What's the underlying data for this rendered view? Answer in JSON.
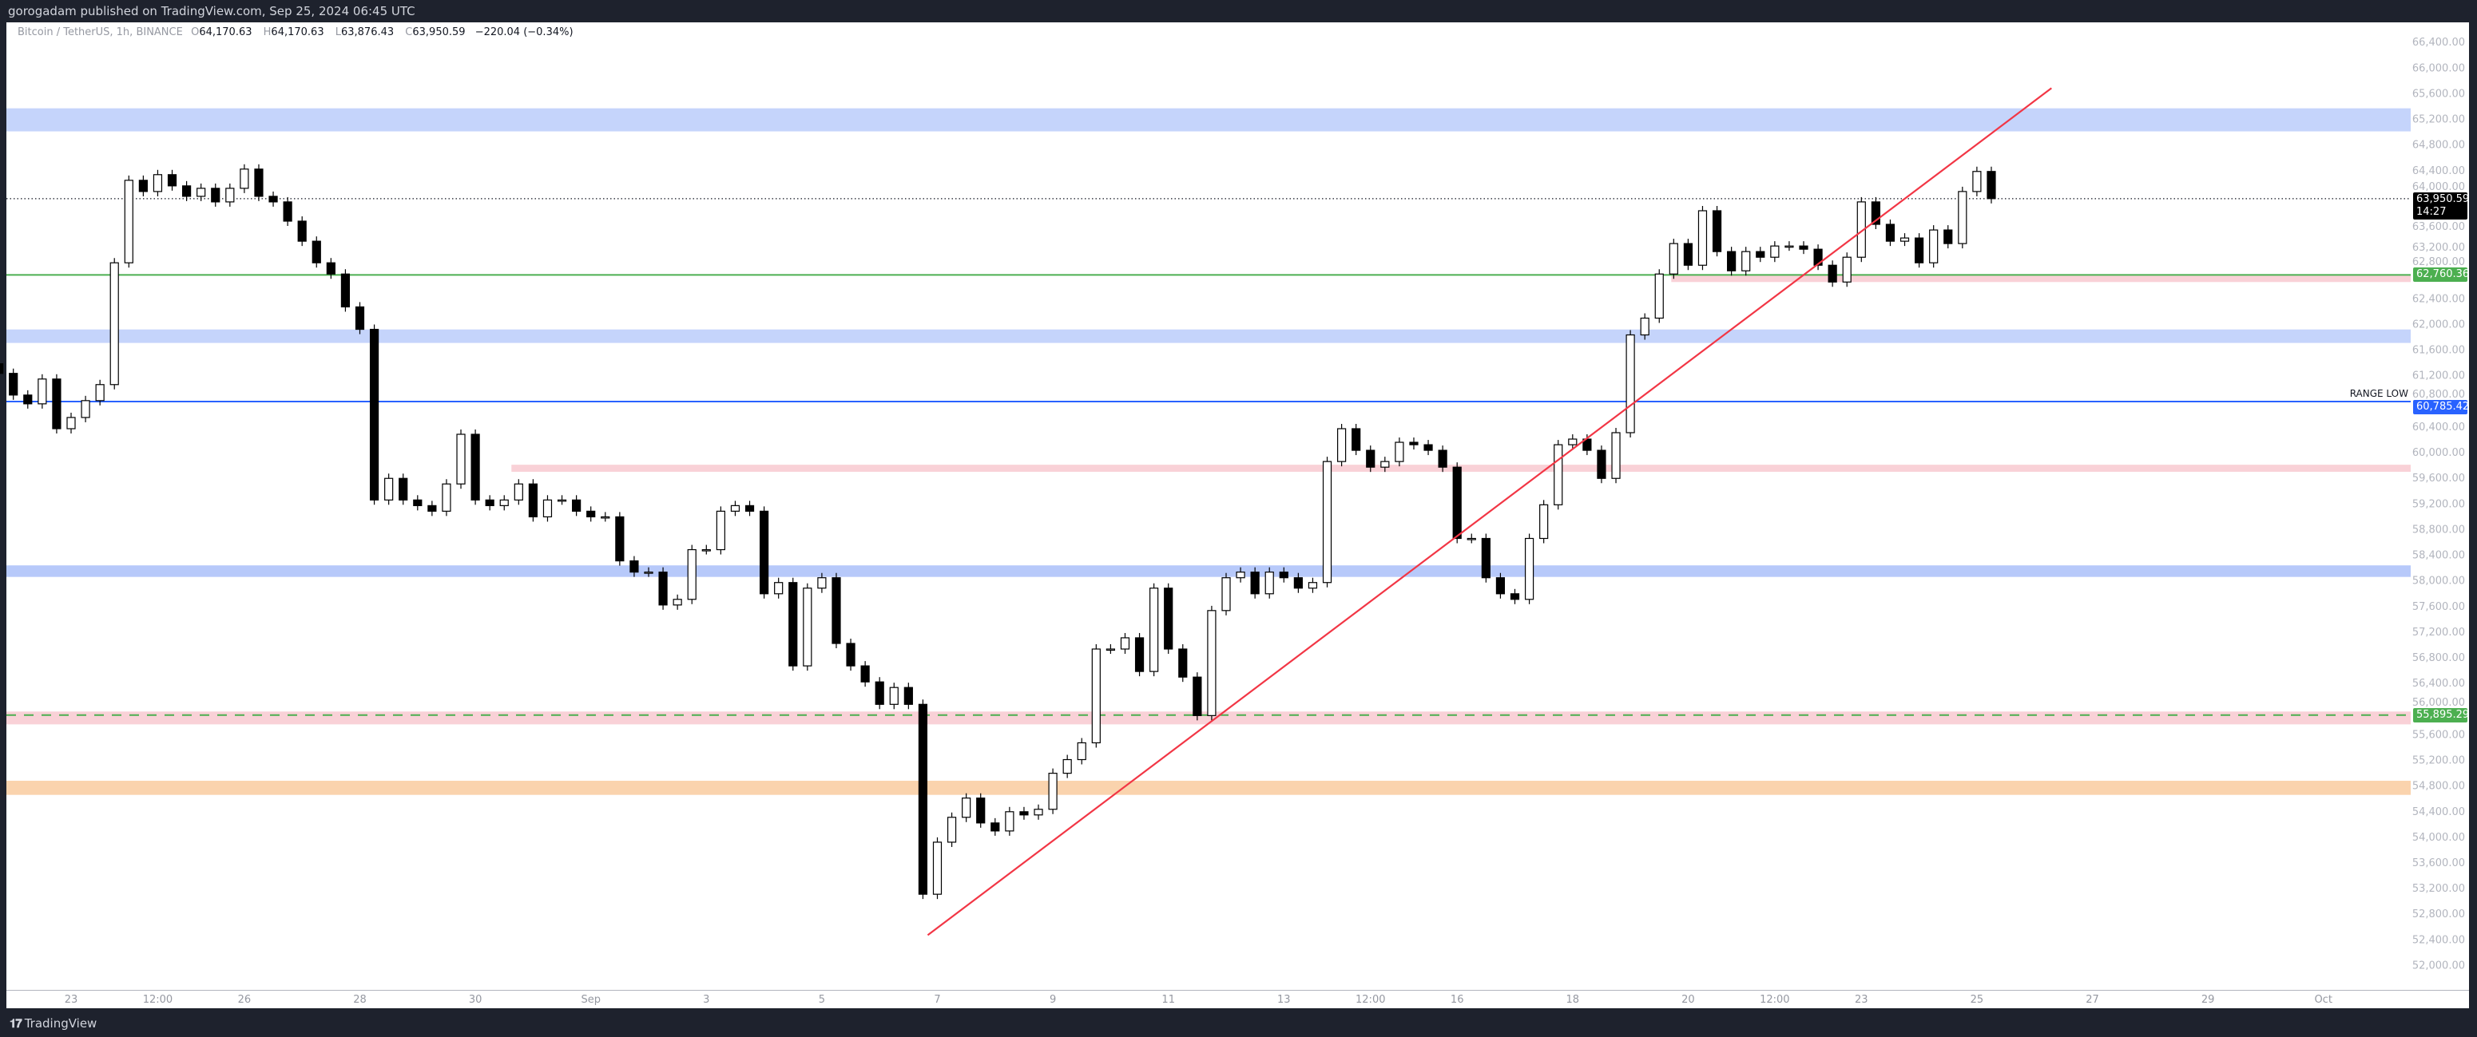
{
  "header": {
    "published": "gorogadam published on TradingView.com, Sep 25, 2024 06:45 UTC"
  },
  "legend": {
    "symbol": "Bitcoin / TetherUS, 1h, BINANCE",
    "o_key": "O",
    "open": "64,170.63",
    "h_key": "H",
    "high": "64,170.63",
    "l_key": "L",
    "low": "63,876.43",
    "c_key": "C",
    "close": "63,950.59",
    "change": "−220.04 (−0.34%)"
  },
  "price_labels": {
    "current": "63,950.59",
    "countdown": "14:27",
    "green_level": "62,760.36",
    "range_low": "60,785.42",
    "range_low_text": "RANGE LOW",
    "dashed_level": "55,895.29"
  },
  "footer": {
    "brand": "TradingView",
    "logo_icon": "tradingview-logo-icon"
  },
  "colors": {
    "up_candle": "#ffffff",
    "down_candle": "#000000",
    "trendline": "#f23645",
    "green": "#4caf50",
    "blue": "#2962ff",
    "zone_blue": "#c5d4fb",
    "zone_pink": "#f9d1d7",
    "zone_orange": "#fad3ad",
    "background": "#1e222d"
  },
  "chart_data": {
    "type": "candlestick",
    "start": "2024-08-21T18:00",
    "interval_hours": 6,
    "closes": [
      61225,
      60887,
      60750,
      61137,
      60362,
      60537,
      60800,
      61050,
      62950,
      64237,
      64062,
      64325,
      64150,
      63987,
      64112,
      63900,
      64112,
      64412,
      63987,
      63900,
      63600,
      63287,
      62950,
      62775,
      62262,
      61912,
      59250,
      59587,
      59250,
      59162,
      59075,
      59500,
      60275,
      59250,
      59162,
      59250,
      59500,
      58987,
      59250,
      59250,
      59075,
      58987,
      58987,
      58300,
      58125,
      58125,
      57612,
      57700,
      58475,
      58475,
      59075,
      59162,
      59075,
      57787,
      57962,
      56662,
      57875,
      58037,
      57012,
      56662,
      56412,
      56062,
      56325,
      56062,
      53100,
      53912,
      54300,
      54600,
      54212,
      54087,
      54387,
      54337,
      54425,
      54987,
      55200,
      55462,
      56925,
      56925,
      57100,
      56575,
      57875,
      56925,
      56487,
      55887,
      57525,
      58037,
      58125,
      57787,
      58125,
      58037,
      57875,
      57962,
      59850,
      60362,
      60025,
      59762,
      59850,
      60150,
      60112,
      60025,
      59762,
      58650,
      58650,
      58037,
      57787,
      57700,
      58650,
      59175,
      60112,
      60200,
      60025,
      59587,
      60300,
      61825,
      62087,
      62775,
      63250,
      62912,
      63762,
      63125,
      62825,
      63125,
      63037,
      63212,
      63212,
      63162,
      62912,
      62650,
      63037,
      63900,
      63550,
      63287,
      63337,
      62950,
      63462,
      63250,
      64062,
      64375,
      63951
    ],
    "ylim": [
      51800,
      66600
    ],
    "y_ticks": [
      66400,
      66000,
      65600,
      65200,
      64800,
      64400,
      64000,
      63600,
      63200,
      62800,
      62400,
      62000,
      61600,
      61200,
      60800,
      60400,
      60000,
      59600,
      59200,
      58800,
      58400,
      58000,
      57600,
      57200,
      56800,
      56400,
      56000,
      55600,
      55200,
      54800,
      54400,
      54000,
      53600,
      53200,
      52800,
      52400,
      52000
    ],
    "x_ticks": [
      {
        "label": "23",
        "date": "2024-08-23T00:00"
      },
      {
        "label": "12:00",
        "date": "2024-08-24T12:00"
      },
      {
        "label": "26",
        "date": "2024-08-26T00:00"
      },
      {
        "label": "28",
        "date": "2024-08-28T00:00"
      },
      {
        "label": "30",
        "date": "2024-08-30T00:00"
      },
      {
        "label": "Sep",
        "date": "2024-09-01T00:00"
      },
      {
        "label": "3",
        "date": "2024-09-03T00:00"
      },
      {
        "label": "5",
        "date": "2024-09-05T00:00"
      },
      {
        "label": "7",
        "date": "2024-09-07T00:00"
      },
      {
        "label": "9",
        "date": "2024-09-09T00:00"
      },
      {
        "label": "11",
        "date": "2024-09-11T00:00"
      },
      {
        "label": "13",
        "date": "2024-09-13T00:00"
      },
      {
        "label": "12:00",
        "date": "2024-09-14T12:00"
      },
      {
        "label": "16",
        "date": "2024-09-16T00:00"
      },
      {
        "label": "18",
        "date": "2024-09-18T00:00"
      },
      {
        "label": "20",
        "date": "2024-09-20T00:00"
      },
      {
        "label": "12:00",
        "date": "2024-09-21T12:00"
      },
      {
        "label": "23",
        "date": "2024-09-23T00:00"
      },
      {
        "label": "25",
        "date": "2024-09-25T00:00"
      },
      {
        "label": "27",
        "date": "2024-09-27T00:00"
      },
      {
        "label": "29",
        "date": "2024-09-29T00:00"
      },
      {
        "label": "Oct",
        "date": "2024-10-01T00:00"
      }
    ],
    "zones": [
      {
        "from": 65000,
        "to": 65360,
        "color": "#c5d4fb"
      },
      {
        "from": 62650,
        "to": 62750,
        "color": "#f9d1d7",
        "start": "2024-09-19T17:00"
      },
      {
        "from": 61700,
        "to": 61910,
        "color": "#c5d4fb"
      },
      {
        "from": 59690,
        "to": 59800,
        "color": "#f9d1d7",
        "start": "2024-08-30T15:00"
      },
      {
        "from": 58050,
        "to": 58230,
        "color": "#b7c9fa"
      },
      {
        "from": 55750,
        "to": 55950,
        "color": "#f9d1d7"
      },
      {
        "from": 54650,
        "to": 54870,
        "color": "#fad3ad"
      }
    ],
    "levels": [
      {
        "price": 63950.59,
        "color": "#131722",
        "style": "dotted"
      },
      {
        "price": 62760.36,
        "color": "#4caf50",
        "style": "solid"
      },
      {
        "price": 60785.42,
        "color": "#2962ff",
        "style": "solid"
      },
      {
        "price": 55895.29,
        "color": "#4caf50",
        "style": "dashed"
      }
    ],
    "trendline": {
      "from": {
        "date": "2024-09-06T20:00",
        "price": 52462
      },
      "to": {
        "date": "2024-09-26T07:00",
        "price": 65675
      },
      "color": "#f23645"
    }
  }
}
